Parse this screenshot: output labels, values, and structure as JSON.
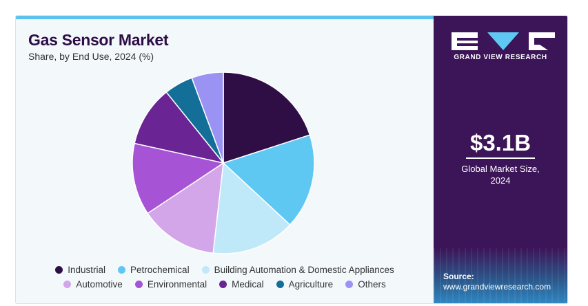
{
  "header": {
    "title": "Gas Sensor Market",
    "subtitle": "Share, by End Use, 2024 (%)"
  },
  "brand": {
    "logo_text": "GRAND VIEW RESEARCH"
  },
  "highlight": {
    "value": "$3.1B",
    "label_line1": "Global Market Size,",
    "label_line2": "2024"
  },
  "source": {
    "label": "Source:",
    "url": "www.grandviewresearch.com"
  },
  "chart_data": {
    "type": "pie",
    "title": "Gas Sensor Market",
    "subtitle": "Share, by End Use, 2024 (%)",
    "legend_position": "bottom",
    "slices": [
      {
        "label": "Industrial",
        "value": 19.5,
        "color": "#2e0e45"
      },
      {
        "label": "Petrochemical",
        "value": 16.5,
        "color": "#5ec8f3"
      },
      {
        "label": "Building Automation & Domestic Appliances",
        "value": 14.5,
        "color": "#bfe8f8"
      },
      {
        "label": "Automotive",
        "value": 13.5,
        "color": "#d2a6e8"
      },
      {
        "label": "Environmental",
        "value": 12.5,
        "color": "#a653d6"
      },
      {
        "label": "Medical",
        "value": 10.5,
        "color": "#6a2494"
      },
      {
        "label": "Agriculture",
        "value": 5.0,
        "color": "#136f98"
      },
      {
        "label": "Others",
        "value": 5.5,
        "color": "#9a93f3"
      }
    ]
  }
}
